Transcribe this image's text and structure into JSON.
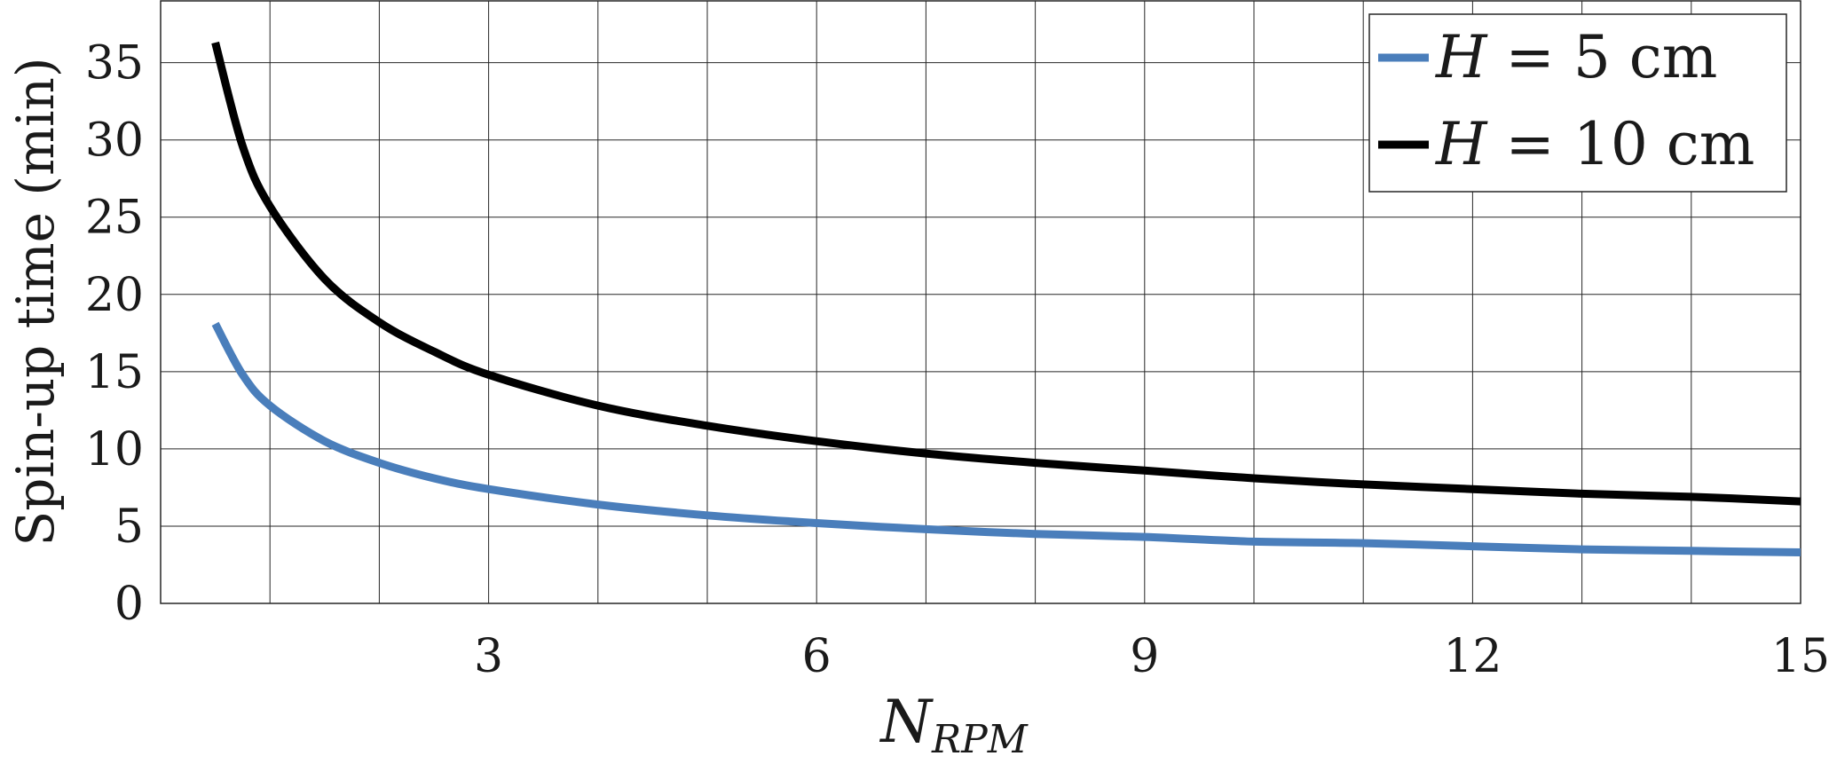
{
  "chart_data": {
    "type": "line",
    "xlabel": "N",
    "xlabel_subscript": "RPM",
    "ylabel": "Spin-up time (min)",
    "xlim": [
      0,
      15
    ],
    "ylim": [
      0,
      39
    ],
    "xticks": [
      3,
      6,
      9,
      12,
      15
    ],
    "yticks": [
      0,
      5,
      10,
      15,
      20,
      25,
      30,
      35
    ],
    "x_gridlines": [
      1,
      2,
      3,
      4,
      5,
      6,
      7,
      8,
      9,
      10,
      11,
      12,
      13,
      14,
      15
    ],
    "grid": true,
    "legend_position": "top-right",
    "series": [
      {
        "name": "H = 5 cm",
        "legend_var": "H",
        "legend_rest": " = 5 cm",
        "color": "#4a7ebb",
        "x": [
          0.5,
          0.75,
          1,
          1.5,
          2,
          2.5,
          3,
          4,
          5,
          6,
          7,
          8,
          9,
          10,
          11,
          12,
          13,
          14,
          15
        ],
        "y": [
          18.1,
          14.8,
          12.8,
          10.5,
          9.1,
          8.1,
          7.4,
          6.4,
          5.7,
          5.2,
          4.8,
          4.5,
          4.3,
          4.0,
          3.9,
          3.7,
          3.5,
          3.4,
          3.3
        ]
      },
      {
        "name": "H = 10 cm",
        "legend_var": "H",
        "legend_rest": " = 10 cm",
        "color": "#000000",
        "x": [
          0.5,
          0.75,
          1,
          1.5,
          2,
          2.5,
          3,
          4,
          5,
          6,
          7,
          8,
          9,
          10,
          11,
          12,
          13,
          14,
          15
        ],
        "y": [
          36.3,
          29.6,
          25.7,
          21.0,
          18.2,
          16.3,
          14.8,
          12.8,
          11.5,
          10.5,
          9.7,
          9.1,
          8.6,
          8.1,
          7.7,
          7.4,
          7.1,
          6.9,
          6.6
        ]
      }
    ]
  }
}
